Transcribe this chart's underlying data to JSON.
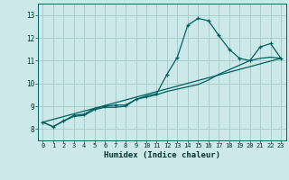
{
  "xlabel": "Humidex (Indice chaleur)",
  "bg_color": "#cce8e8",
  "line_color": "#006060",
  "grid_color": "#aacccc",
  "xlim": [
    -0.5,
    23.5
  ],
  "ylim": [
    7.5,
    13.5
  ],
  "xticks": [
    0,
    1,
    2,
    3,
    4,
    5,
    6,
    7,
    8,
    9,
    10,
    11,
    12,
    13,
    14,
    15,
    16,
    17,
    18,
    19,
    20,
    21,
    22,
    23
  ],
  "yticks": [
    8,
    9,
    10,
    11,
    12,
    13
  ],
  "series1_x": [
    0,
    1,
    2,
    3,
    4,
    5,
    6,
    7,
    8,
    9,
    10,
    11,
    12,
    13,
    14,
    15,
    16,
    17,
    18,
    19,
    20,
    21,
    22,
    23
  ],
  "series1_y": [
    8.3,
    8.1,
    8.35,
    8.6,
    8.65,
    8.9,
    9.0,
    9.05,
    9.05,
    9.3,
    9.45,
    9.55,
    10.4,
    11.15,
    12.55,
    12.85,
    12.75,
    12.1,
    11.5,
    11.1,
    11.0,
    11.6,
    11.75,
    11.1
  ],
  "series2_x": [
    0,
    1,
    2,
    3,
    4,
    5,
    6,
    7,
    8,
    9,
    10,
    11,
    12,
    13,
    14,
    15,
    16,
    17,
    18,
    19,
    20,
    21,
    22,
    23
  ],
  "series2_y": [
    8.3,
    8.1,
    8.35,
    8.55,
    8.6,
    8.85,
    8.95,
    8.95,
    9.0,
    9.3,
    9.4,
    9.5,
    9.65,
    9.75,
    9.85,
    9.95,
    10.15,
    10.4,
    10.6,
    10.8,
    11.0,
    11.1,
    11.15,
    11.1
  ],
  "series3_x": [
    0,
    23
  ],
  "series3_y": [
    8.3,
    11.1
  ]
}
